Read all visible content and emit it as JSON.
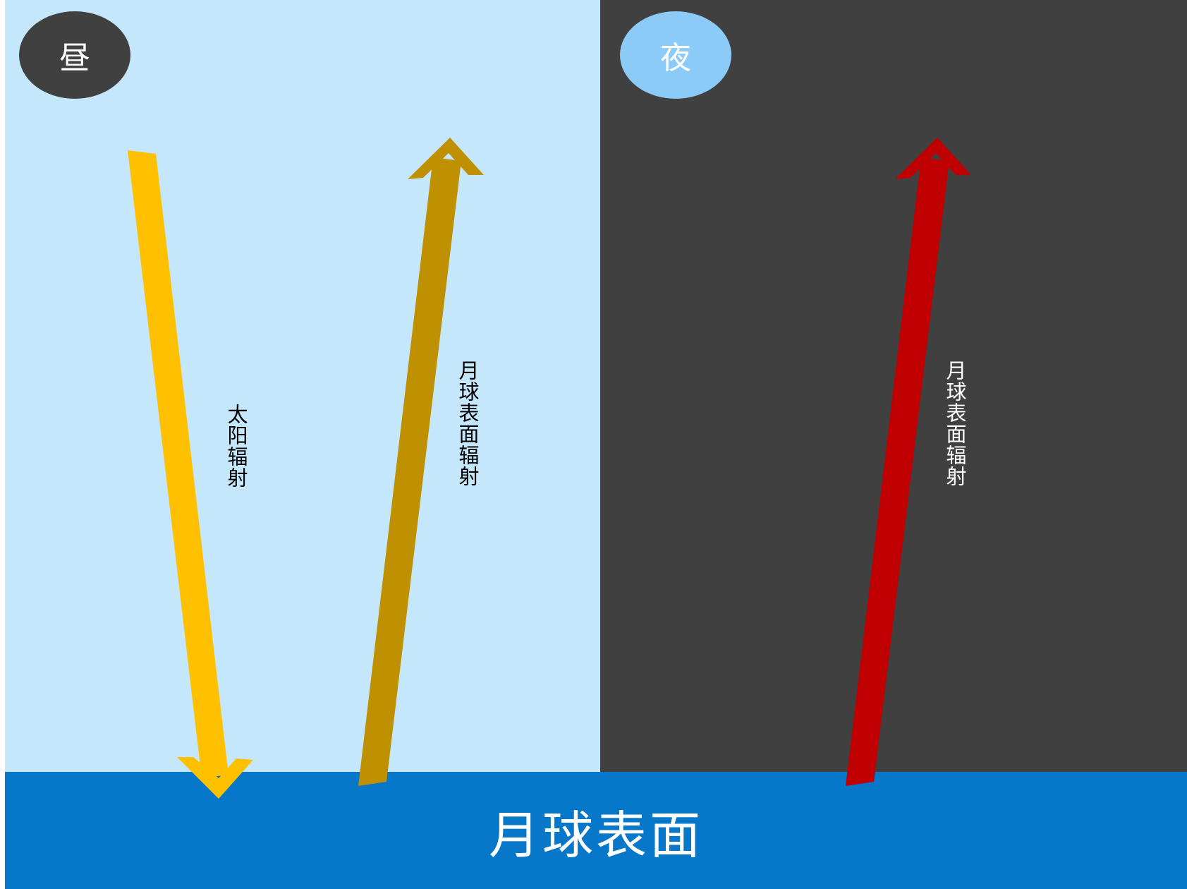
{
  "day": {
    "badge_label": "昼",
    "background_color": "#c5e7fc",
    "badge_color": "#404040",
    "arrows": [
      {
        "label": "太阳辐射",
        "direction": "down",
        "color": "#ffc000"
      },
      {
        "label": "月球表面辐射",
        "direction": "up",
        "color": "#bf9000"
      }
    ]
  },
  "night": {
    "badge_label": "夜",
    "background_color": "#404040",
    "badge_color": "#8ccbf8",
    "arrows": [
      {
        "label": "月球表面辐射",
        "direction": "up",
        "color": "#c00000"
      }
    ]
  },
  "surface": {
    "label": "月球表面",
    "color": "#0677c9"
  }
}
